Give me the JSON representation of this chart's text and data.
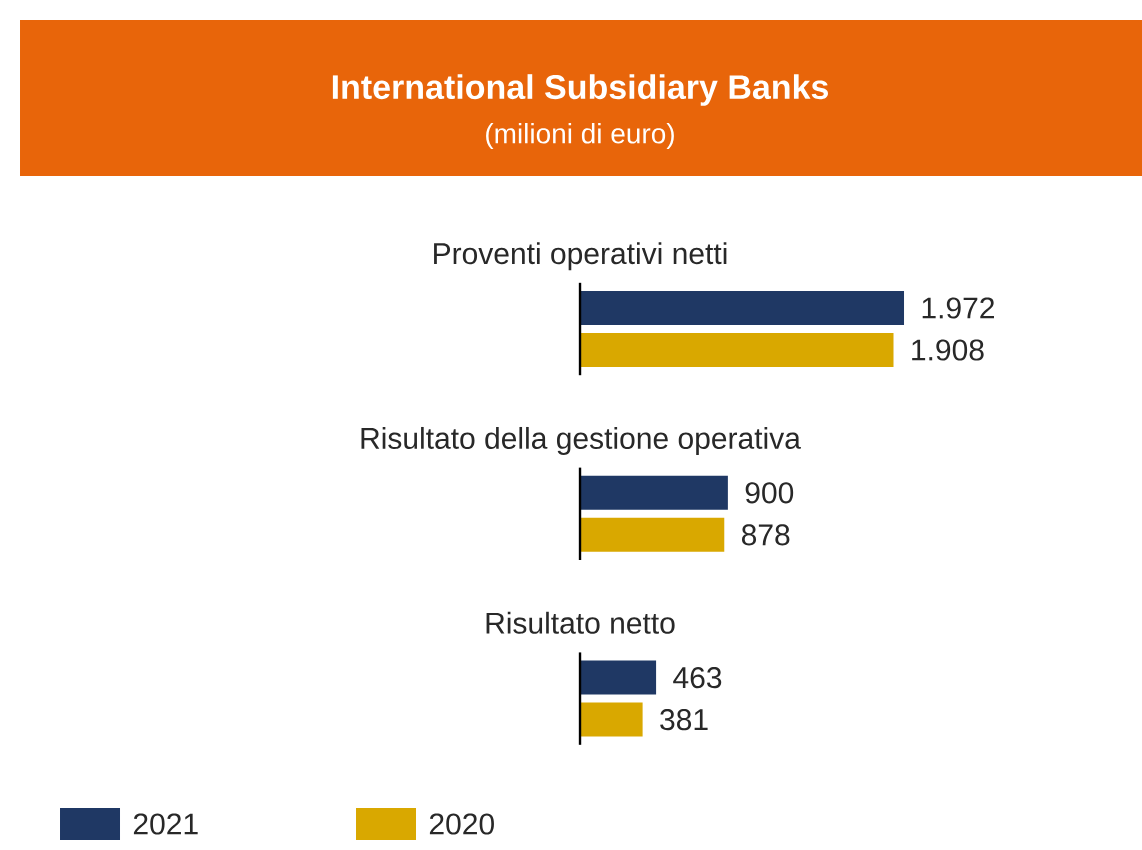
{
  "chart_data": {
    "type": "bar",
    "orientation": "horizontal",
    "title": "International Subsidiary Banks",
    "subtitle": "(milioni di euro)",
    "categories": [
      "Proventi operativi netti",
      "Risultato della gestione operativa",
      "Risultato netto"
    ],
    "series": [
      {
        "name": "2021",
        "color": "#1f3864",
        "values": [
          1972,
          900,
          463
        ],
        "value_labels": [
          "1.972",
          "900",
          "463"
        ]
      },
      {
        "name": "2020",
        "color": "#d9a800",
        "values": [
          1908,
          878,
          381
        ],
        "value_labels": [
          "1.908",
          "878",
          "381"
        ]
      }
    ],
    "legend": "bottom left"
  }
}
